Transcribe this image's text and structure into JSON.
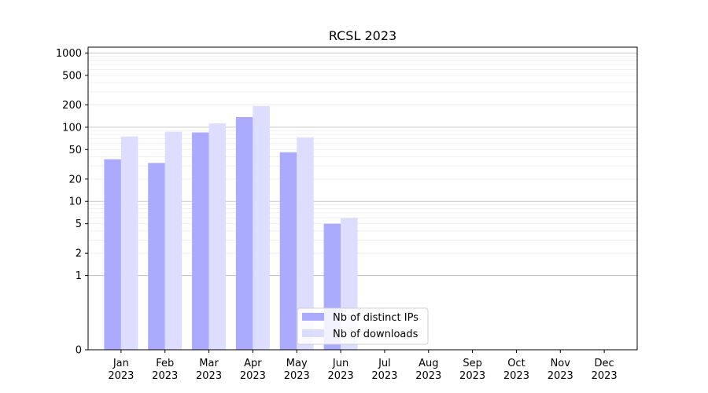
{
  "chart_data": {
    "type": "bar",
    "title": "RCSL 2023",
    "xlabel": "",
    "ylabel": "",
    "y_scale": "symlog",
    "ylim": [
      0,
      1200
    ],
    "y_ticks": [
      0,
      1,
      2,
      5,
      10,
      20,
      50,
      100,
      200,
      500,
      1000
    ],
    "categories": [
      "Jan\n2023",
      "Feb\n2023",
      "Mar\n2023",
      "Apr\n2023",
      "May\n2023",
      "Jun\n2023",
      "Jul\n2023",
      "Aug\n2023",
      "Sep\n2023",
      "Oct\n2023",
      "Nov\n2023",
      "Dec\n2023"
    ],
    "series": [
      {
        "name": "Nb of distinct IPs",
        "color": "#aaaaff",
        "values": [
          37,
          33,
          85,
          137,
          46,
          5,
          0,
          0,
          0,
          0,
          0,
          0
        ]
      },
      {
        "name": "Nb of downloads",
        "color": "#ddddff",
        "values": [
          75,
          87,
          113,
          193,
          73,
          6,
          0,
          0,
          0,
          0,
          0,
          0
        ]
      }
    ],
    "grid": true,
    "legend": "lower-center"
  }
}
